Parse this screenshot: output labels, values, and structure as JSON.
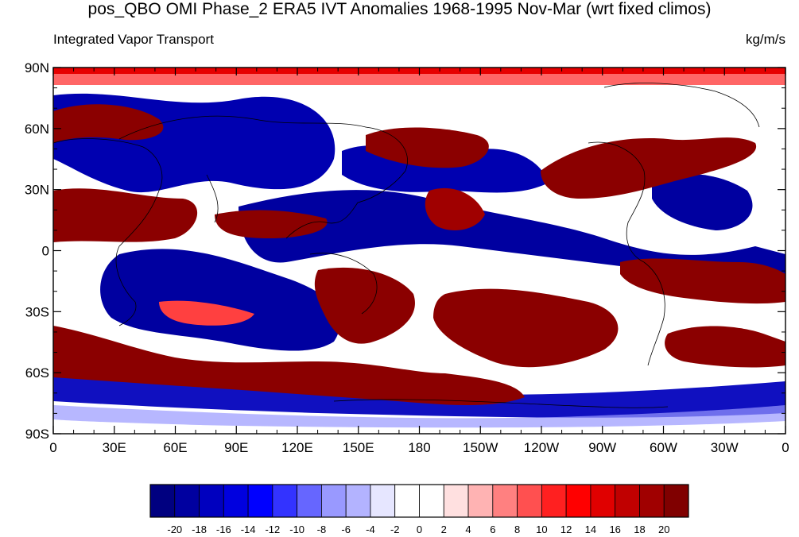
{
  "title": "pos_QBO OMI Phase_2 ERA5 IVT Anomalies 1968-1995 Nov-Mar (wrt fixed climos)",
  "left_subtitle": "Integrated Vapor Transport",
  "right_subtitle": "kg/m/s",
  "map": {
    "lat_ticks": [
      "90N",
      "60N",
      "30N",
      "0",
      "30S",
      "60S",
      "90S"
    ],
    "lon_ticks": [
      "0",
      "30E",
      "60E",
      "90E",
      "120E",
      "150E",
      "180",
      "150W",
      "120W",
      "90W",
      "60W",
      "30W",
      "0"
    ],
    "lon_range": [
      0,
      360
    ],
    "lat_range": [
      -90,
      90
    ]
  },
  "colorbar": {
    "levels": [
      "-20",
      "-18",
      "-16",
      "-14",
      "-12",
      "-10",
      "-8",
      "-6",
      "-4",
      "-2",
      "0",
      "2",
      "4",
      "6",
      "8",
      "10",
      "12",
      "14",
      "16",
      "18",
      "20"
    ],
    "colors": [
      "#000080",
      "#0000a0",
      "#0000bf",
      "#0000df",
      "#0000ff",
      "#3333ff",
      "#6666ff",
      "#9999ff",
      "#b3b3ff",
      "#e6e6ff",
      "#ffffff",
      "#ffffff",
      "#ffe0e0",
      "#ffb3b3",
      "#ff8080",
      "#ff5050",
      "#ff2020",
      "#ff0000",
      "#e00000",
      "#c00000",
      "#a00000",
      "#800000"
    ]
  },
  "colors": {
    "strong_pos": "#8b0000",
    "strong_neg": "#00008b",
    "background": "#ffffff"
  }
}
